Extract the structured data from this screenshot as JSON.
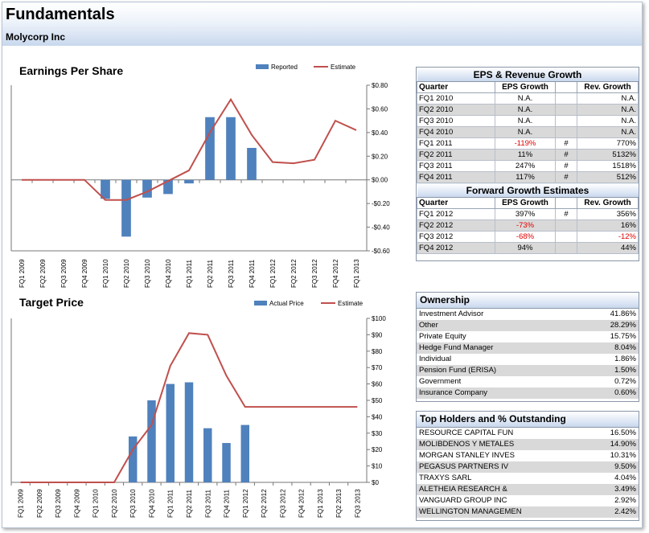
{
  "header": {
    "title": "Fundamentals",
    "subtitle": "Molycorp Inc"
  },
  "chart_data": [
    {
      "type": "bar",
      "title": "Earnings Per Share",
      "categories": [
        "FQ1 2009",
        "FQ2 2009",
        "FQ3 2009",
        "FQ4 2009",
        "FQ1 2010",
        "FQ2 2010",
        "FQ3 2010",
        "FQ4 2010",
        "FQ1 2011",
        "FQ2 2011",
        "FQ3 2011",
        "FQ4 2011",
        "FQ1 2012",
        "FQ2 2012",
        "FQ3 2012",
        "FQ4 2012",
        "FQ1 2013"
      ],
      "series": [
        {
          "name": "Reported",
          "kind": "bar",
          "color": "#4f81bd",
          "values": [
            null,
            null,
            null,
            null,
            -0.16,
            -0.48,
            -0.15,
            -0.12,
            -0.03,
            0.53,
            0.53,
            0.27,
            null,
            null,
            null,
            null,
            null
          ]
        },
        {
          "name": "Estimate",
          "kind": "line",
          "color": "#c0504d",
          "values": [
            0,
            0,
            0,
            0,
            -0.17,
            -0.17,
            -0.1,
            -0.01,
            0.08,
            0.4,
            0.68,
            0.38,
            0.15,
            0.14,
            0.17,
            0.5,
            0.42
          ]
        }
      ],
      "ylim": [
        -0.6,
        0.8
      ],
      "yticks": [
        0.8,
        0.6,
        0.4,
        0.2,
        0,
        -0.2,
        -0.4,
        -0.6
      ],
      "ytick_labels": [
        "$0.80",
        "$0.60",
        "$0.40",
        "$0.20",
        "$0.00",
        "-$0.20",
        "-$0.40",
        "-$0.60"
      ]
    },
    {
      "type": "bar",
      "title": "Target Price",
      "categories": [
        "FQ1 2009",
        "FQ2 2009",
        "FQ3 2009",
        "FQ4 2009",
        "FQ1 2010",
        "FQ2 2010",
        "FQ3 2010",
        "FQ4 2010",
        "FQ1 2011",
        "FQ2 2011",
        "FQ3 2011",
        "FQ4 2011",
        "FQ1 2012",
        "FQ2 2012",
        "FQ3 2012",
        "FQ4 2012",
        "FQ1 2013",
        "FQ2 2013",
        "FQ3 2013"
      ],
      "series": [
        {
          "name": "Actual Price",
          "kind": "bar",
          "color": "#4f81bd",
          "values": [
            null,
            null,
            null,
            null,
            null,
            null,
            28,
            50,
            60,
            61,
            33,
            24,
            35,
            null,
            null,
            null,
            null,
            null,
            null
          ]
        },
        {
          "name": "Estimate",
          "kind": "line",
          "color": "#c0504d",
          "values": [
            0,
            0,
            0,
            0,
            0,
            0,
            20,
            35,
            71,
            91,
            90,
            65,
            46,
            46,
            46,
            46,
            46,
            46,
            46
          ]
        }
      ],
      "ylim": [
        0,
        100
      ],
      "yticks": [
        100,
        90,
        80,
        70,
        60,
        50,
        40,
        30,
        20,
        10,
        0
      ],
      "ytick_labels": [
        "$100",
        "$90",
        "$80",
        "$70",
        "$60",
        "$50",
        "$40",
        "$30",
        "$20",
        "$10",
        "$0"
      ]
    }
  ],
  "eps_table": {
    "title": "EPS & Revenue Growth",
    "columns": [
      "Quarter",
      "EPS Growth",
      "",
      "Rev. Growth"
    ],
    "rows": [
      {
        "q": "FQ1 2010",
        "eps": "N.A.",
        "flag": "",
        "rev": "N.A."
      },
      {
        "q": "FQ2 2010",
        "eps": "N.A.",
        "flag": "",
        "rev": "N.A."
      },
      {
        "q": "FQ3 2010",
        "eps": "N.A.",
        "flag": "",
        "rev": "N.A."
      },
      {
        "q": "FQ4 2010",
        "eps": "N.A.",
        "flag": "",
        "rev": "N.A."
      },
      {
        "q": "FQ1 2011",
        "eps": "-119%",
        "flag": "#",
        "rev": "770%"
      },
      {
        "q": "FQ2 2011",
        "eps": "11%",
        "flag": "#",
        "rev": "5132%"
      },
      {
        "q": "FQ3 2011",
        "eps": "247%",
        "flag": "#",
        "rev": "1518%"
      },
      {
        "q": "FQ4 2011",
        "eps": "117%",
        "flag": "#",
        "rev": "512%"
      }
    ]
  },
  "fwd_table": {
    "title": "Forward Growth Estimates",
    "columns": [
      "Quarter",
      "EPS Growth",
      "",
      "Rev. Growth"
    ],
    "rows": [
      {
        "q": "FQ1 2012",
        "eps": "397%",
        "flag": "#",
        "rev": "356%"
      },
      {
        "q": "FQ2 2012",
        "eps": "-73%",
        "flag": "",
        "rev": "16%"
      },
      {
        "q": "FQ3 2012",
        "eps": "-68%",
        "flag": "",
        "rev": "-12%"
      },
      {
        "q": "FQ4 2012",
        "eps": "94%",
        "flag": "",
        "rev": "44%"
      }
    ]
  },
  "ownership": {
    "title": "Ownership",
    "rows": [
      {
        "label": "Investment Advisor",
        "value": "41.86%"
      },
      {
        "label": "Other",
        "value": "28.29%"
      },
      {
        "label": "Private Equity",
        "value": "15.75%"
      },
      {
        "label": "Hedge Fund Manager",
        "value": "8.04%"
      },
      {
        "label": "Individual",
        "value": "1.86%"
      },
      {
        "label": "Pension Fund (ERISA)",
        "value": "1.50%"
      },
      {
        "label": "Government",
        "value": "0.72%"
      },
      {
        "label": "Insurance Company",
        "value": "0.60%"
      }
    ]
  },
  "holders": {
    "title": "Top Holders and % Outstanding",
    "rows": [
      {
        "label": "RESOURCE CAPITAL FUN",
        "value": "16.50%"
      },
      {
        "label": "MOLIBDENOS Y METALES",
        "value": "14.90%"
      },
      {
        "label": "MORGAN STANLEY INVES",
        "value": "10.31%"
      },
      {
        "label": "PEGASUS PARTNERS IV",
        "value": "9.50%"
      },
      {
        "label": "TRAXYS SARL",
        "value": "4.04%"
      },
      {
        "label": "ALETHEIA RESEARCH &",
        "value": "3.49%"
      },
      {
        "label": "VANGUARD GROUP INC",
        "value": "2.92%"
      },
      {
        "label": "WELLINGTON MANAGEMEN",
        "value": "2.42%"
      }
    ]
  }
}
